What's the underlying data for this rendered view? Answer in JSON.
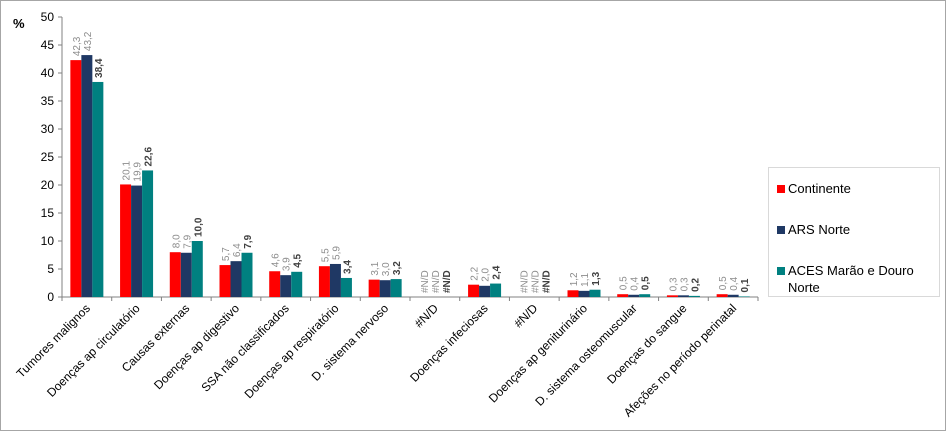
{
  "chart_data": {
    "type": "bar",
    "ylabel": "%",
    "ylim": [
      0,
      50
    ],
    "yticks": [
      0,
      5,
      10,
      15,
      20,
      25,
      30,
      35,
      40,
      45,
      50
    ],
    "categories": [
      "Tumores malignos",
      "Doenças ap circulatório",
      "Causas externas",
      "Doenças ap digestivo",
      "SSA não classificados",
      "Doenças ap respiratório",
      "D. sistema nervoso",
      "#N/D",
      "Doenças infeciosas",
      "#N/D",
      "Doenças ap geniturinário",
      "D. sistema osteomuscular",
      "Doenças do sangue",
      "Afeções no período perinatal"
    ],
    "series": [
      {
        "name": "Continente",
        "color": "#ff0000",
        "values": [
          42.3,
          20.1,
          8.0,
          5.7,
          4.6,
          5.5,
          3.1,
          null,
          2.2,
          null,
          1.2,
          0.5,
          0.3,
          0.5
        ],
        "labels": [
          "42,3",
          "20,1",
          "8,0",
          "5,7",
          "4,6",
          "5,5",
          "3,1",
          "#N/D",
          "2,2",
          "#N/D",
          "1,2",
          "0,5",
          "0,3",
          "0,5"
        ]
      },
      {
        "name": "ARS Norte",
        "color": "#1f3864",
        "values": [
          43.2,
          19.9,
          7.9,
          6.4,
          3.9,
          5.9,
          3.0,
          null,
          2.0,
          null,
          1.1,
          0.4,
          0.3,
          0.4
        ],
        "labels": [
          "43,2",
          "19,9",
          "7,9",
          "6,4",
          "3,9",
          "5,9",
          "3,0",
          "#N/D",
          "2,0",
          "#N/D",
          "1,1",
          "0,4",
          "0,3",
          "0,4"
        ]
      },
      {
        "name": "ACES Marão e Douro Norte",
        "color": "#008080",
        "values": [
          38.4,
          22.6,
          10.0,
          7.9,
          4.5,
          3.4,
          3.2,
          null,
          2.4,
          null,
          1.3,
          0.5,
          0.2,
          0.1
        ],
        "labels": [
          "38,4",
          "22,6",
          "10,0",
          "7,9",
          "4,5",
          "3,4",
          "3,2",
          "#N/D",
          "2,4",
          "#N/D",
          "1,3",
          "0,5",
          "0,2",
          "0,1"
        ]
      }
    ],
    "legend_position": "right",
    "grid": false
  }
}
